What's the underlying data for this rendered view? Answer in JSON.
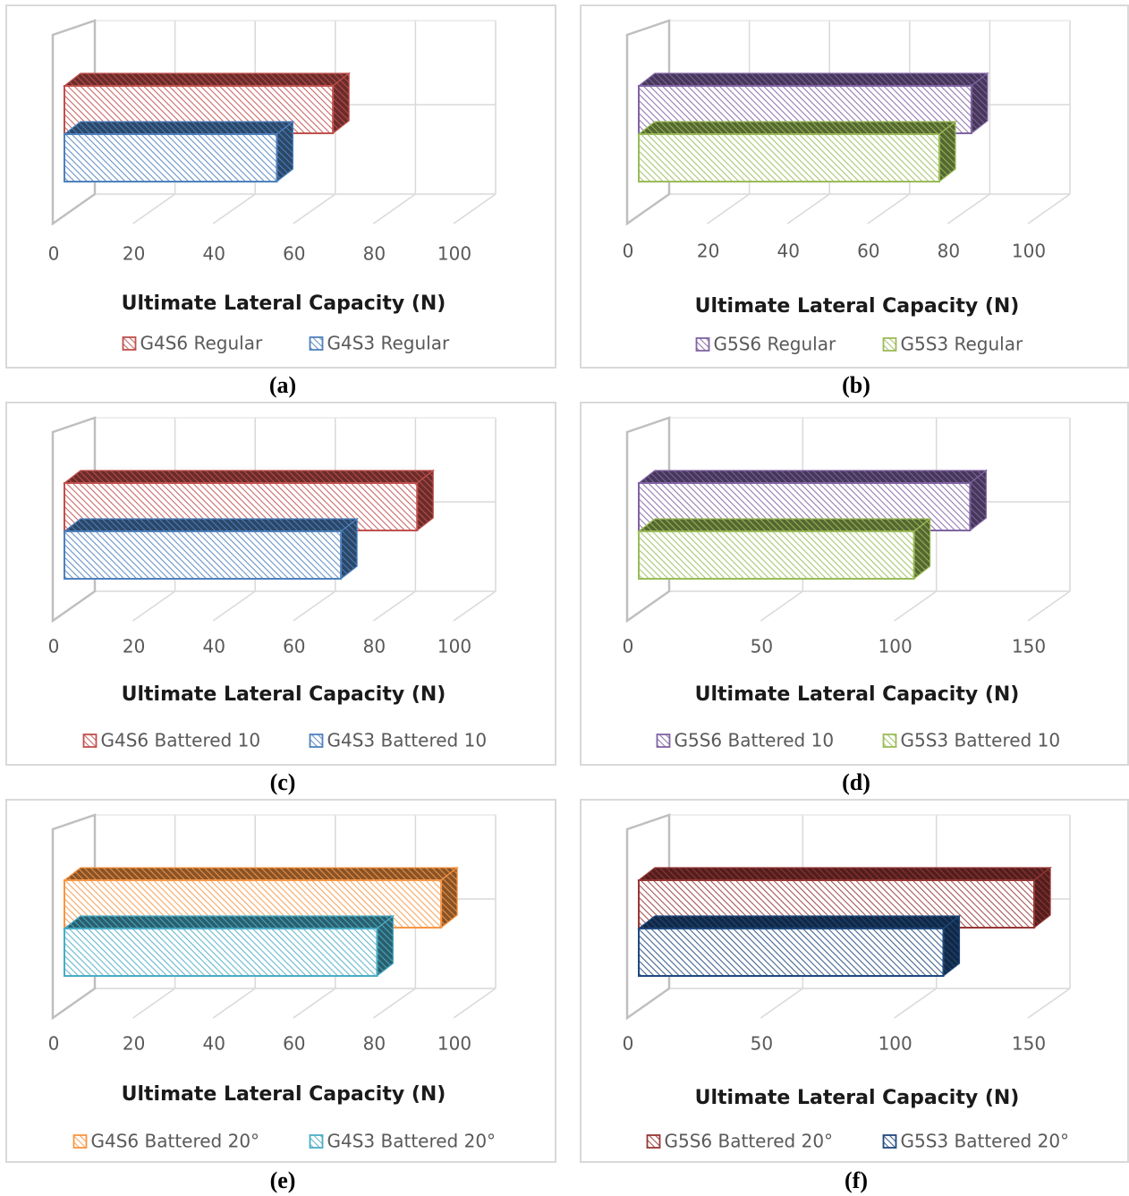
{
  "chart_data": [
    {
      "type": "bar",
      "panel_label": "(a)",
      "xlabel": "Ultimate Lateral Capacity (N)",
      "xlim": [
        0,
        100
      ],
      "ticks": [
        "0",
        "20",
        "40",
        "60",
        "80",
        "100"
      ],
      "series": [
        {
          "name": "G4S6 Regular",
          "value": 67,
          "color": "#c0504d"
        },
        {
          "name": "G4S3 Regular",
          "value": 53,
          "color": "#4f81bd"
        }
      ]
    },
    {
      "type": "bar",
      "panel_label": "(b)",
      "xlabel": "Ultimate Lateral Capacity (N)",
      "xlim": [
        0,
        100
      ],
      "ticks": [
        "0",
        "20",
        "40",
        "60",
        "80",
        "100"
      ],
      "series": [
        {
          "name": "G5S6 Regular",
          "value": 83,
          "color": "#8064a2"
        },
        {
          "name": "G5S3 Regular",
          "value": 75,
          "color": "#9bbb59"
        }
      ]
    },
    {
      "type": "bar",
      "panel_label": "(c)",
      "xlabel": "Ultimate Lateral Capacity (N)",
      "xlim": [
        0,
        100
      ],
      "ticks": [
        "0",
        "20",
        "40",
        "60",
        "80",
        "100"
      ],
      "series": [
        {
          "name": "G4S6 Battered 10",
          "value": 88,
          "color": "#c0504d"
        },
        {
          "name": "G4S3 Battered 10",
          "value": 69,
          "color": "#4f81bd"
        }
      ]
    },
    {
      "type": "bar",
      "panel_label": "(d)",
      "xlabel": "Ultimate Lateral Capacity (N)",
      "xlim": [
        0,
        150
      ],
      "ticks": [
        "0",
        "50",
        "100",
        "150"
      ],
      "series": [
        {
          "name": "G5S6 Battered 10",
          "value": 124,
          "color": "#8064a2"
        },
        {
          "name": "G5S3 Battered 10",
          "value": 103,
          "color": "#9bbb59"
        }
      ]
    },
    {
      "type": "bar",
      "panel_label": "(e)",
      "xlabel": "Ultimate Lateral Capacity (N)",
      "xlim": [
        0,
        100
      ],
      "ticks": [
        "0",
        "20",
        "40",
        "60",
        "80",
        "100"
      ],
      "series": [
        {
          "name": "G4S6 Battered 20°",
          "value": 94,
          "color": "#f79646"
        },
        {
          "name": "G4S3 Battered 20°",
          "value": 78,
          "color": "#4bacc6"
        }
      ]
    },
    {
      "type": "bar",
      "panel_label": "(f)",
      "xlabel": "Ultimate Lateral Capacity (N)",
      "xlim": [
        0,
        150
      ],
      "ticks": [
        "0",
        "50",
        "100",
        "150"
      ],
      "series": [
        {
          "name": "G5S6 Battered 20°",
          "value": 148,
          "color": "#953735"
        },
        {
          "name": "G5S3 Battered 20°",
          "value": 114,
          "color": "#1f497d"
        }
      ]
    }
  ]
}
